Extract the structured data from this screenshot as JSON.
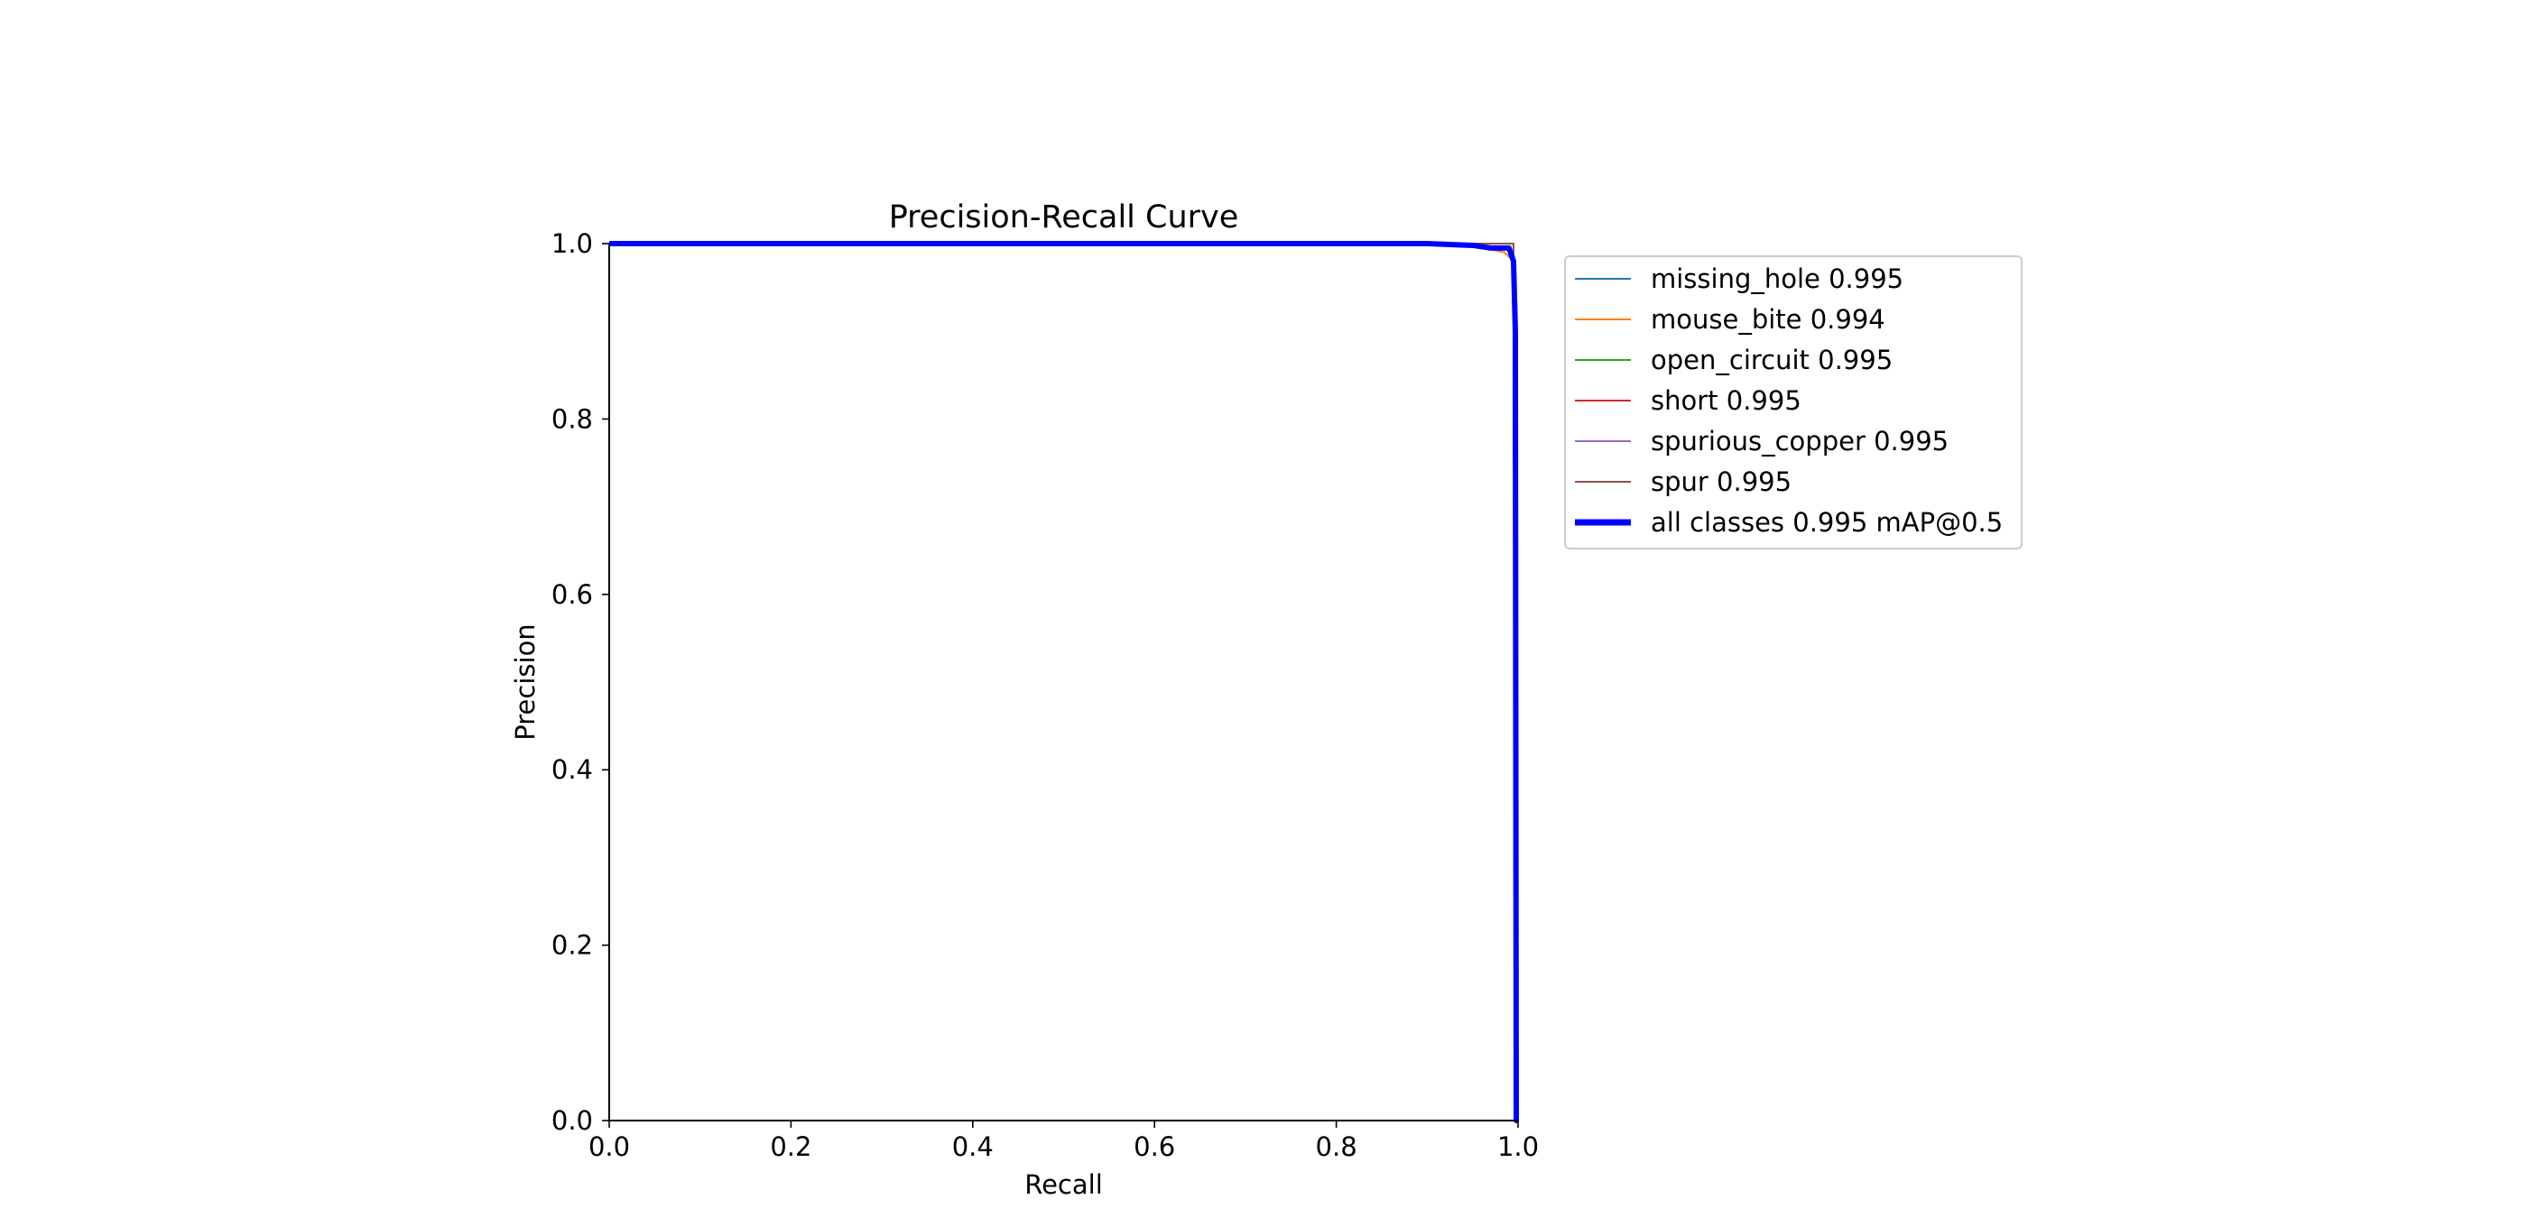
{
  "chart_data": {
    "type": "line",
    "title": "Precision-Recall Curve",
    "xlabel": "Recall",
    "ylabel": "Precision",
    "xlim": [
      0.0,
      1.0
    ],
    "ylim": [
      0.0,
      1.0
    ],
    "xticks": [
      "0.0",
      "0.2",
      "0.4",
      "0.6",
      "0.8",
      "1.0"
    ],
    "yticks": [
      "0.0",
      "0.2",
      "0.4",
      "0.6",
      "0.8",
      "1.0"
    ],
    "grid": false,
    "legend_position": "outside-upper-right",
    "series": [
      {
        "name": "missing_hole 0.995",
        "color": "#1f77b4",
        "linewidth": "thin",
        "x": [
          0.0,
          0.9,
          0.99,
          0.995,
          0.997,
          1.0
        ],
        "y": [
          1.0,
          1.0,
          1.0,
          1.0,
          0.0,
          0.0
        ]
      },
      {
        "name": "mouse_bite 0.994",
        "color": "#ff7f0e",
        "linewidth": "thin",
        "x": [
          0.0,
          0.9,
          0.95,
          0.985,
          0.995,
          0.997,
          1.0
        ],
        "y": [
          1.0,
          1.0,
          0.998,
          0.99,
          0.98,
          0.0,
          0.0
        ]
      },
      {
        "name": "open_circuit 0.995",
        "color": "#2ca02c",
        "linewidth": "thin",
        "x": [
          0.0,
          0.9,
          0.99,
          0.995,
          0.997,
          1.0
        ],
        "y": [
          1.0,
          1.0,
          1.0,
          1.0,
          0.0,
          0.0
        ]
      },
      {
        "name": "short 0.995",
        "color": "#d62728",
        "linewidth": "thin",
        "x": [
          0.0,
          0.9,
          0.99,
          0.995,
          0.997,
          1.0
        ],
        "y": [
          1.0,
          1.0,
          1.0,
          1.0,
          0.0,
          0.0
        ]
      },
      {
        "name": "spurious_copper 0.995",
        "color": "#9467bd",
        "linewidth": "thin",
        "x": [
          0.0,
          0.9,
          0.99,
          0.995,
          0.997,
          1.0
        ],
        "y": [
          1.0,
          1.0,
          1.0,
          1.0,
          0.0,
          0.0
        ]
      },
      {
        "name": "spur 0.995",
        "color": "#8c564b",
        "linewidth": "thin",
        "x": [
          0.0,
          0.9,
          0.99,
          0.995,
          0.997,
          1.0
        ],
        "y": [
          1.0,
          1.0,
          1.0,
          1.0,
          0.0,
          0.0
        ]
      },
      {
        "name": "all classes 0.995 mAP@0.5",
        "color": "#0000ff",
        "linewidth": "thick",
        "x": [
          0.0,
          0.9,
          0.95,
          0.97,
          0.99,
          0.995,
          0.997,
          0.998,
          1.0
        ],
        "y": [
          1.0,
          1.0,
          0.998,
          0.995,
          0.995,
          0.98,
          0.9,
          0.0,
          0.0
        ]
      }
    ]
  }
}
